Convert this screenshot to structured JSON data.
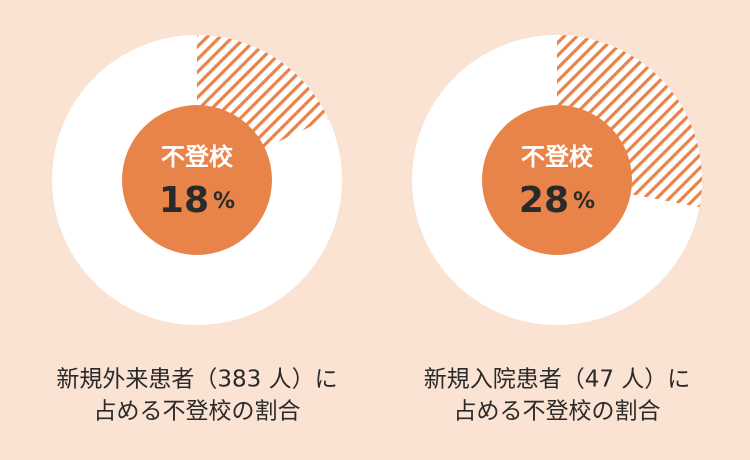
{
  "chart_data": [
    {
      "type": "pie",
      "center_label": "不登校",
      "values": [
        18
      ],
      "unit": "%",
      "color": "#e8834a",
      "caption": [
        "新規外来患者（383 人）に",
        "占める不登校の割合"
      ]
    },
    {
      "type": "pie",
      "center_label": "不登校",
      "values": [
        28
      ],
      "unit": "%",
      "color": "#e8834a",
      "caption": [
        "新規入院患者（47 人）に",
        "占める不登校の割合"
      ]
    }
  ]
}
